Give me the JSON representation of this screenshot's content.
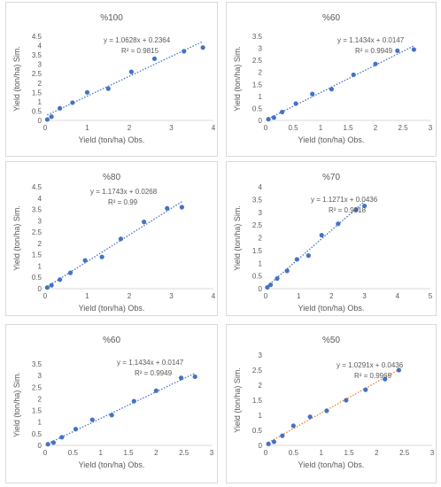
{
  "chart_data": [
    {
      "type": "scatter",
      "title": "%100",
      "xlabel": "Yield (ton/ha) Obs.",
      "ylabel": "Yield (ton/ha) Sim.",
      "xlim": [
        0,
        4
      ],
      "ylim": [
        0,
        4.5
      ],
      "xticks": [
        0,
        1,
        2,
        3,
        4
      ],
      "yticks": [
        0,
        0.5,
        1,
        1.5,
        2,
        2.5,
        3,
        3.5,
        4,
        4.5
      ],
      "equation": "y = 1.0628x + 0.2364",
      "r2": "R² = 0.9815",
      "trendline_color": "#4472c4",
      "point_color": "#4472c4",
      "grid": false,
      "x": [
        0.05,
        0.15,
        0.35,
        0.65,
        1.0,
        1.5,
        2.05,
        2.6,
        3.3,
        3.75
      ],
      "y": [
        0.05,
        0.2,
        0.65,
        0.95,
        1.5,
        1.7,
        2.6,
        3.3,
        3.7,
        3.9
      ]
    },
    {
      "type": "scatter",
      "title": "%60",
      "xlabel": "Yield (ton/ha) Obs.",
      "ylabel": "Yield (ton/ha) Sim.",
      "xlim": [
        0,
        3
      ],
      "ylim": [
        0,
        3.5
      ],
      "xticks": [
        0,
        0.5,
        1,
        1.5,
        2,
        2.5,
        3
      ],
      "yticks": [
        0,
        0.5,
        1,
        1.5,
        2,
        2.5,
        3,
        3.5
      ],
      "equation": "y = 1.1434x + 0.0147",
      "r2": "R² = 0.9949",
      "trendline_color": "#4472c4",
      "point_color": "#4472c4",
      "grid": false,
      "x": [
        0.05,
        0.15,
        0.3,
        0.55,
        0.85,
        1.2,
        1.6,
        2.0,
        2.4,
        2.7
      ],
      "y": [
        0.05,
        0.12,
        0.35,
        0.7,
        1.1,
        1.3,
        1.9,
        2.35,
        2.9,
        2.95
      ]
    },
    {
      "type": "scatter",
      "title": "%80",
      "xlabel": "Yield (ton/ha) Obs.",
      "ylabel": "Yield (ton/ha) Sim.",
      "xlim": [
        0,
        4
      ],
      "ylim": [
        0,
        4.5
      ],
      "xticks": [
        0,
        1,
        2,
        3,
        4
      ],
      "yticks": [
        0,
        0.5,
        1,
        1.5,
        2,
        2.5,
        3,
        3.5,
        4,
        4.5
      ],
      "equation": "y = 1.1743x + 0.0268",
      "r2": "R² = 0.99",
      "trendline_color": "#4472c4",
      "point_color": "#4472c4",
      "grid": false,
      "x": [
        0.05,
        0.15,
        0.35,
        0.6,
        0.95,
        1.35,
        1.8,
        2.35,
        2.9,
        3.25
      ],
      "y": [
        0.05,
        0.15,
        0.4,
        0.7,
        1.25,
        1.4,
        2.2,
        2.95,
        3.55,
        3.6
      ]
    },
    {
      "type": "scatter",
      "title": "%70",
      "xlabel": "Yield (ton/ha) Obs.",
      "ylabel": "Yield (ton/ha) Sim.",
      "xlim": [
        0,
        5
      ],
      "ylim": [
        0,
        4
      ],
      "xticks": [
        0,
        1,
        2,
        3,
        4,
        5
      ],
      "yticks": [
        0,
        0.5,
        1,
        1.5,
        2,
        2.5,
        3,
        3.5,
        4
      ],
      "equation": "y = 1.1271x + 0.0436",
      "r2": "R² = 0.9918",
      "trendline_color": "#4472c4",
      "point_color": "#4472c4",
      "grid": false,
      "x": [
        0.05,
        0.15,
        0.35,
        0.65,
        0.95,
        1.3,
        1.7,
        2.2,
        2.75,
        3.0
      ],
      "y": [
        0.05,
        0.15,
        0.4,
        0.7,
        1.15,
        1.3,
        2.1,
        2.55,
        3.1,
        3.25
      ]
    },
    {
      "type": "scatter",
      "title": "%60",
      "xlabel": "Yield (ton/ha) Obs.",
      "ylabel": "Yield (ton/ha) Sim.",
      "xlim": [
        0,
        3
      ],
      "ylim": [
        0,
        3.5
      ],
      "xticks": [
        0,
        0.5,
        1,
        1.5,
        2,
        2.5,
        3
      ],
      "yticks": [
        0,
        0.5,
        1,
        1.5,
        2,
        2.5,
        3,
        3.5
      ],
      "equation": "y = 1.1434x + 0.0147",
      "r2": "R² = 0.9949",
      "trendline_color": "#4472c4",
      "point_color": "#4472c4",
      "grid": false,
      "x": [
        0.05,
        0.15,
        0.3,
        0.55,
        0.85,
        1.2,
        1.6,
        2.0,
        2.45,
        2.7
      ],
      "y": [
        0.05,
        0.12,
        0.35,
        0.7,
        1.1,
        1.3,
        1.9,
        2.35,
        2.9,
        2.95
      ]
    },
    {
      "type": "scatter",
      "title": "%50",
      "xlabel": "Yield (ton/ha) Obs.",
      "ylabel": "Yield (ton/ha) Sim.",
      "xlim": [
        0,
        3
      ],
      "ylim": [
        0,
        3
      ],
      "xticks": [
        0,
        0.5,
        1,
        1.5,
        2,
        2.5,
        3
      ],
      "yticks": [
        0,
        0.5,
        1,
        1.5,
        2,
        2.5,
        3
      ],
      "equation": "y = 1.0291x + 0.0436",
      "r2": "R² = 0.9969",
      "trendline_color": "#ed7d31",
      "point_color": "#4472c4",
      "grid": false,
      "x": [
        0.05,
        0.15,
        0.3,
        0.5,
        0.8,
        1.1,
        1.45,
        1.8,
        2.15,
        2.4
      ],
      "y": [
        0.05,
        0.12,
        0.32,
        0.65,
        0.95,
        1.15,
        1.5,
        1.85,
        2.2,
        2.5
      ]
    }
  ]
}
